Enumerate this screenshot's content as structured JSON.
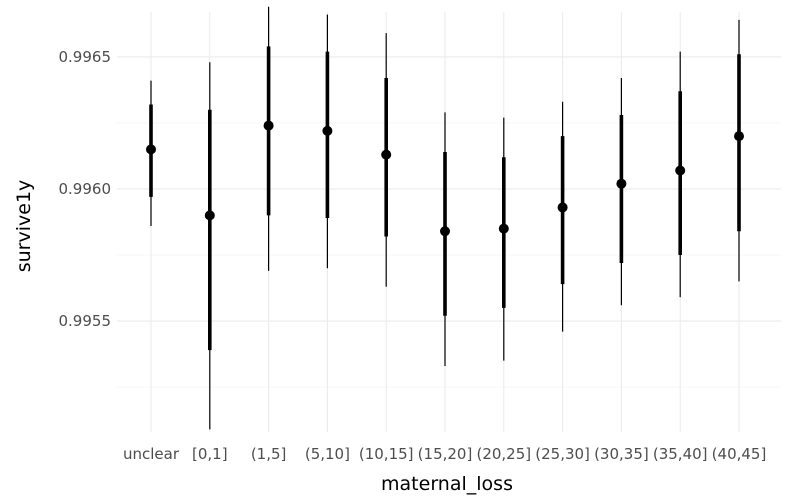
{
  "chart_data": {
    "type": "pointrange",
    "xlabel": "maternal_loss",
    "ylabel": "survive1y",
    "categories": [
      "unclear",
      "[0,1]",
      "(1,5]",
      "(5,10]",
      "(10,15]",
      "(15,20]",
      "(20,25]",
      "(25,30]",
      "(30,35]",
      "(35,40]",
      "(40,45]"
    ],
    "y_ticks": [
      "0.9955",
      "0.9960",
      "0.9965"
    ],
    "ylim": [
      0.99508,
      0.99667
    ],
    "grid": true,
    "legend": "none",
    "point_color": "#000000",
    "series": [
      {
        "points": [
          {
            "category": "unclear",
            "estimate": 0.99615,
            "inner_low": 0.99597,
            "inner_high": 0.99632,
            "outer_low": 0.99586,
            "outer_high": 0.99641
          },
          {
            "category": "[0,1]",
            "estimate": 0.9959,
            "inner_low": 0.99539,
            "inner_high": 0.9963,
            "outer_low": 0.99509,
            "outer_high": 0.99648
          },
          {
            "category": "(1,5]",
            "estimate": 0.99624,
            "inner_low": 0.9959,
            "inner_high": 0.99654,
            "outer_low": 0.99569,
            "outer_high": 0.99669
          },
          {
            "category": "(5,10]",
            "estimate": 0.99622,
            "inner_low": 0.99589,
            "inner_high": 0.99652,
            "outer_low": 0.9957,
            "outer_high": 0.99666
          },
          {
            "category": "(10,15]",
            "estimate": 0.99613,
            "inner_low": 0.99582,
            "inner_high": 0.99642,
            "outer_low": 0.99563,
            "outer_high": 0.99659
          },
          {
            "category": "(15,20]",
            "estimate": 0.99584,
            "inner_low": 0.99552,
            "inner_high": 0.99614,
            "outer_low": 0.99533,
            "outer_high": 0.99629
          },
          {
            "category": "(20,25]",
            "estimate": 0.99585,
            "inner_low": 0.99555,
            "inner_high": 0.99612,
            "outer_low": 0.99535,
            "outer_high": 0.99627
          },
          {
            "category": "(25,30]",
            "estimate": 0.99593,
            "inner_low": 0.99564,
            "inner_high": 0.9962,
            "outer_low": 0.99546,
            "outer_high": 0.99633
          },
          {
            "category": "(30,35]",
            "estimate": 0.99602,
            "inner_low": 0.99572,
            "inner_high": 0.99628,
            "outer_low": 0.99556,
            "outer_high": 0.99642
          },
          {
            "category": "(35,40]",
            "estimate": 0.99607,
            "inner_low": 0.99575,
            "inner_high": 0.99637,
            "outer_low": 0.99559,
            "outer_high": 0.99652
          },
          {
            "category": "(40,45]",
            "estimate": 0.9962,
            "inner_low": 0.99584,
            "inner_high": 0.99651,
            "outer_low": 0.99565,
            "outer_high": 0.99664
          }
        ]
      }
    ]
  }
}
